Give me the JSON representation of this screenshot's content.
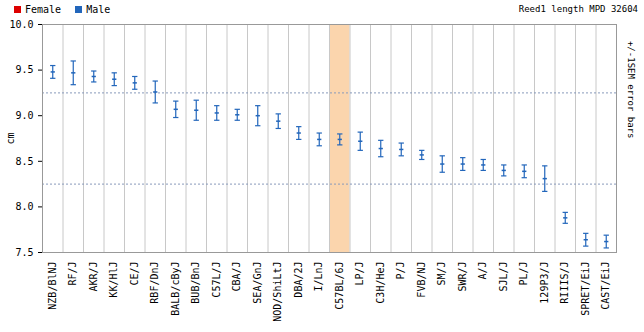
{
  "chart_data": {
    "type": "errorbar",
    "title": "Reed1 length MPD 32604",
    "y_label": "cm",
    "annotations": [
      "+/-1SEM error bars"
    ],
    "legend": "top-left",
    "grid": true,
    "categories": [
      "NZB/BlNJ",
      "RF/J",
      "AKR/J",
      "KK/HlJ",
      "CE/J",
      "RBF/DnJ",
      "BALB/cByJ",
      "BUB/BnJ",
      "C57L/J",
      "CBA/J",
      "SEA/GnJ",
      "NOD/ShiLtJ",
      "DBA/2J",
      "I/LnJ",
      "C57BL/6J",
      "LP/J",
      "C3H/HeJ",
      "P/J",
      "FVB/NJ",
      "SM/J",
      "SWR/J",
      "A/J",
      "SJL/J",
      "PL/J",
      "129P3/J",
      "RIIIS/J",
      "SPRET/EiJ",
      "CAST/EiJ"
    ],
    "series": [
      {
        "name": "Female",
        "color": "#dd0000",
        "values": [
          null,
          null,
          null,
          null,
          null,
          null,
          null,
          null,
          null,
          null,
          null,
          null,
          null,
          null,
          null,
          null,
          null,
          null,
          null,
          null,
          null,
          null,
          null,
          null,
          null,
          null,
          null,
          null
        ],
        "errors": [
          null,
          null,
          null,
          null,
          null,
          null,
          null,
          null,
          null,
          null,
          null,
          null,
          null,
          null,
          null,
          null,
          null,
          null,
          null,
          null,
          null,
          null,
          null,
          null,
          null,
          null,
          null,
          null
        ]
      },
      {
        "name": "Male",
        "color": "#2266bb",
        "values": [
          9.48,
          9.47,
          9.43,
          9.4,
          9.36,
          9.26,
          9.07,
          9.06,
          9.03,
          9.01,
          9.0,
          8.94,
          8.81,
          8.74,
          8.74,
          8.72,
          8.64,
          8.63,
          8.57,
          8.47,
          8.47,
          8.46,
          8.4,
          8.39,
          8.31,
          7.88,
          7.64,
          7.62
        ],
        "errors": [
          0.07,
          0.13,
          0.06,
          0.07,
          0.07,
          0.12,
          0.09,
          0.11,
          0.08,
          0.06,
          0.11,
          0.08,
          0.07,
          0.07,
          0.06,
          0.1,
          0.09,
          0.07,
          0.05,
          0.09,
          0.07,
          0.06,
          0.06,
          0.07,
          0.14,
          0.06,
          0.07,
          0.07
        ]
      }
    ],
    "highlight_category": "C57BL/6J",
    "reference_lines": [
      9.25,
      8.25
    ],
    "ylim": [
      7.5,
      10
    ],
    "yticks": [
      7.5,
      8,
      8.5,
      9,
      9.5,
      10
    ]
  }
}
